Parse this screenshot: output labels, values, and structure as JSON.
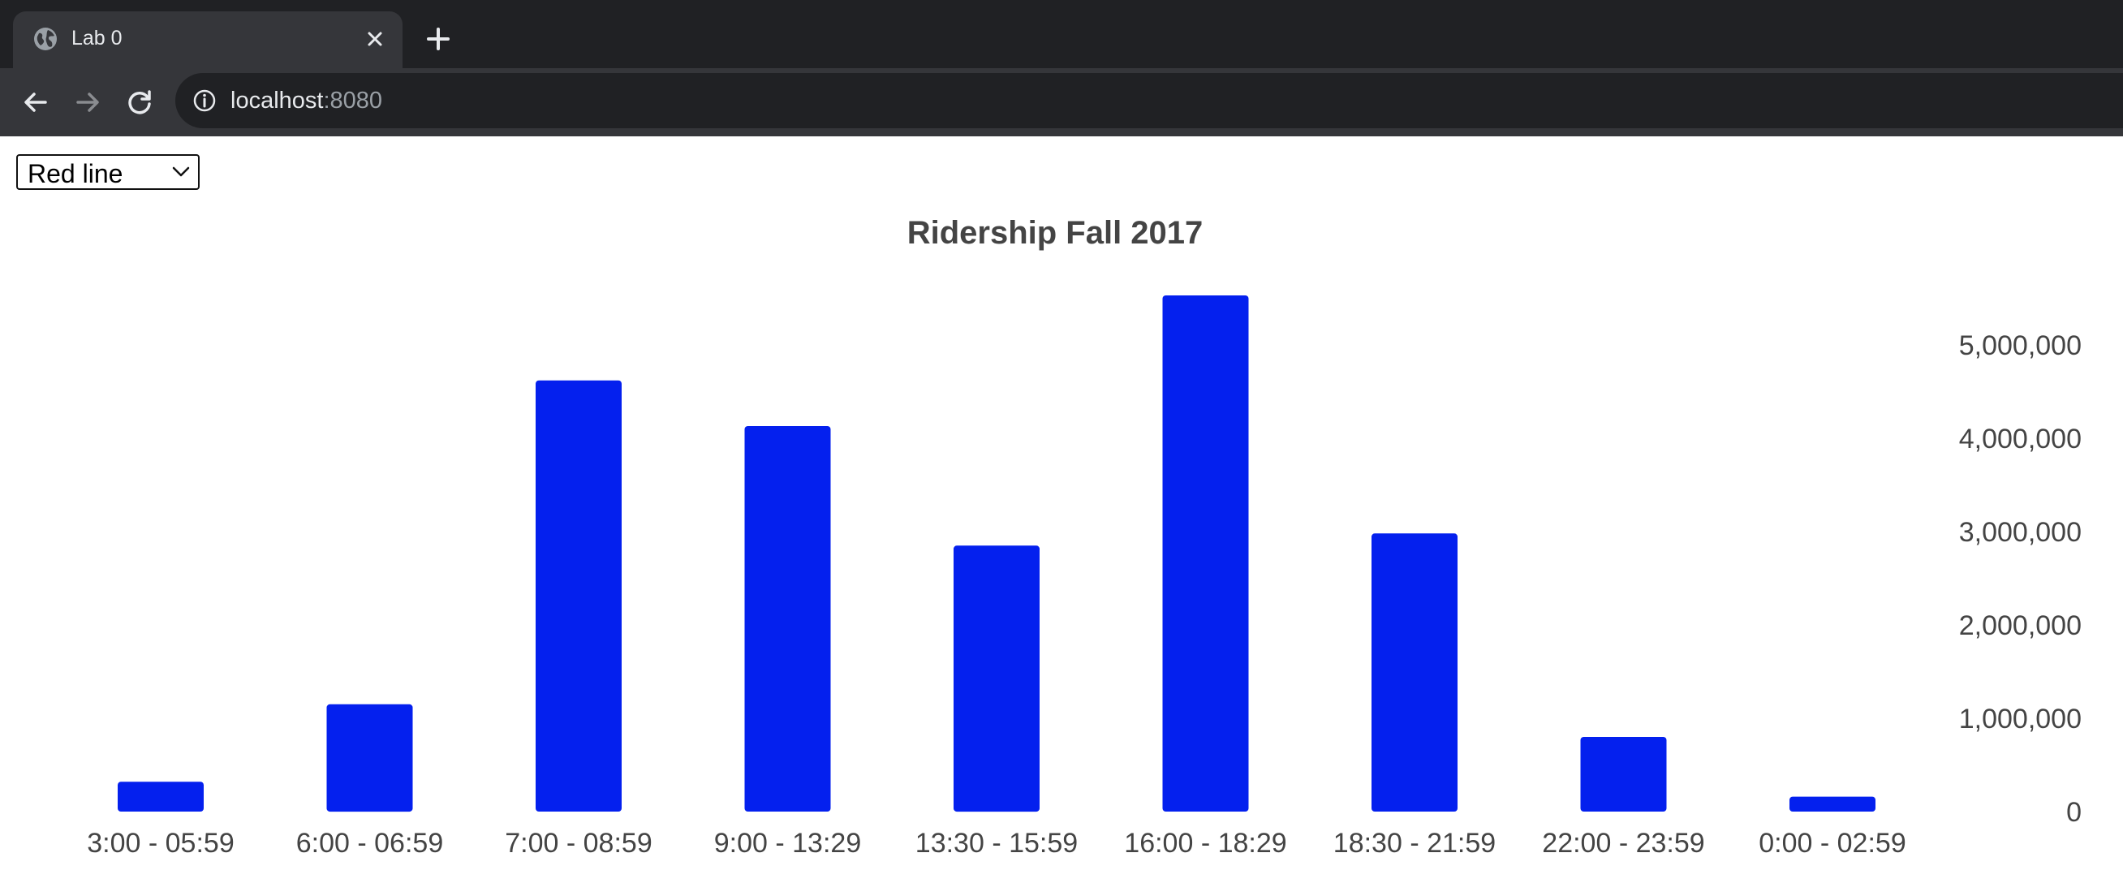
{
  "browser": {
    "tab": {
      "title": "Lab 0",
      "favicon": "globe-icon",
      "close_icon": "close-icon"
    },
    "new_tab_icon": "plus-icon",
    "nav": {
      "back_icon": "arrow-left-icon",
      "forward_icon": "arrow-right-icon",
      "reload_icon": "reload-icon"
    },
    "address": {
      "info_icon": "info-icon",
      "host": "localhost",
      "port": ":8080"
    },
    "colors": {
      "tabstrip": "#202124",
      "toolbar": "#35363a",
      "omnibox": "#202124",
      "text": "#e8eaed",
      "muted_text": "#9aa0a6"
    }
  },
  "controls": {
    "line_select": {
      "selected": "Red line",
      "chevron_icon": "chevron-down-icon"
    }
  },
  "chart_data": {
    "type": "bar",
    "title": "Ridership Fall 2017",
    "xlabel": "",
    "ylabel": "",
    "categories": [
      "3:00 - 05:59",
      "6:00 - 06:59",
      "7:00 - 08:59",
      "9:00 - 13:29",
      "13:30 - 15:59",
      "16:00 - 18:29",
      "18:30 - 21:59",
      "22:00 - 23:59",
      "0:00 - 02:59"
    ],
    "values": [
      320000,
      1150000,
      4620000,
      4130000,
      2850000,
      5530000,
      2980000,
      800000,
      160000
    ],
    "ylim": [
      0,
      5500000
    ],
    "yticks": [
      0,
      1000000,
      2000000,
      3000000,
      4000000,
      5000000
    ],
    "ytick_labels": [
      "0",
      "1,000,000",
      "2,000,000",
      "3,000,000",
      "4,000,000",
      "5,000,000"
    ],
    "y_axis_position": "right",
    "grid": false,
    "legend": "none",
    "bar_color": "#0420ee"
  }
}
